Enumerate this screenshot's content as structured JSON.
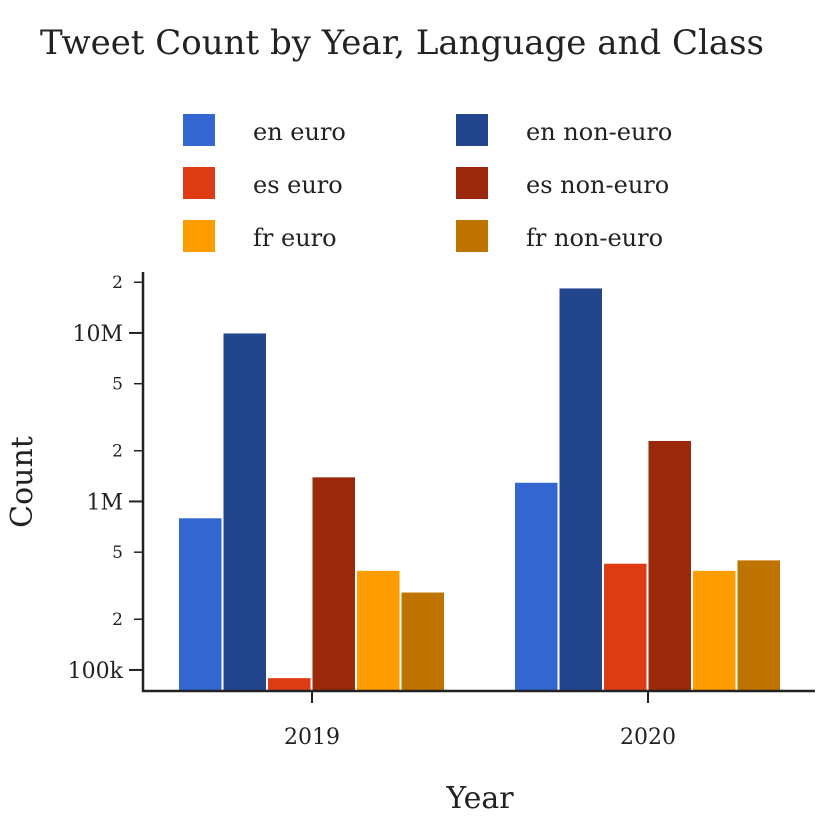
{
  "chart_data": {
    "type": "bar",
    "title": "Tweet Count by Year, Language and Class",
    "xlabel": "Year",
    "ylabel": "Count",
    "yscale": "log",
    "ylim": [
      75000,
      23000000
    ],
    "categories": [
      "2019",
      "2020"
    ],
    "y_major_ticks": [
      {
        "value": 100000,
        "label": "100k"
      },
      {
        "value": 1000000,
        "label": "1M"
      },
      {
        "value": 10000000,
        "label": "10M"
      }
    ],
    "y_minor_ticks": [
      {
        "value": 200000,
        "label": "2"
      },
      {
        "value": 500000,
        "label": "5"
      },
      {
        "value": 2000000,
        "label": "2"
      },
      {
        "value": 5000000,
        "label": "5"
      },
      {
        "value": 20000000,
        "label": "2"
      }
    ],
    "grid": false,
    "legend_position": "top",
    "series": [
      {
        "name": "en euro",
        "color": "#3366d1",
        "values": [
          800000,
          1300000
        ]
      },
      {
        "name": "en non-euro",
        "color": "#23458e",
        "values": [
          10000000,
          18500000
        ]
      },
      {
        "name": "es euro",
        "color": "#dd3b14",
        "values": [
          90000,
          430000
        ]
      },
      {
        "name": "es non-euro",
        "color": "#9a290b",
        "values": [
          1400000,
          2300000
        ]
      },
      {
        "name": "fr euro",
        "color": "#ff9c00",
        "values": [
          390000,
          390000
        ]
      },
      {
        "name": "fr non-euro",
        "color": "#bf7400",
        "values": [
          290000,
          450000
        ]
      }
    ]
  }
}
